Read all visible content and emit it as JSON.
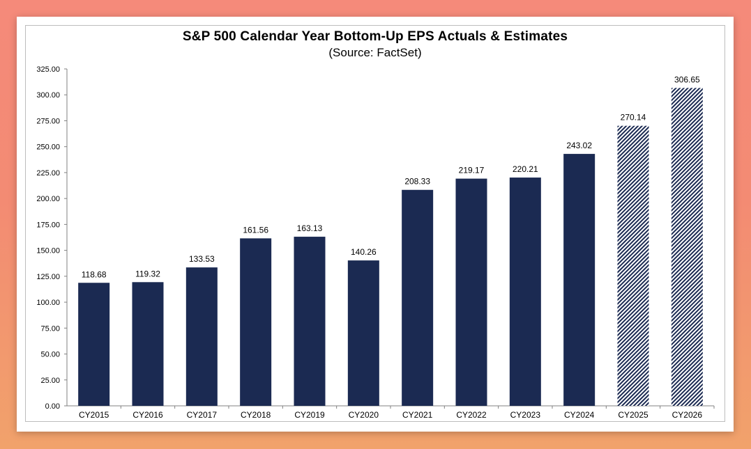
{
  "chart_data": {
    "type": "bar",
    "title": "S&P 500 Calendar Year Bottom-Up EPS Actuals & Estimates",
    "subtitle": "(Source: FactSet)",
    "xlabel": "",
    "ylabel": "",
    "categories": [
      "CY2015",
      "CY2016",
      "CY2017",
      "CY2018",
      "CY2019",
      "CY2020",
      "CY2021",
      "CY2022",
      "CY2023",
      "CY2024",
      "CY2025",
      "CY2026"
    ],
    "values": [
      118.68,
      119.32,
      133.53,
      161.56,
      163.13,
      140.26,
      208.33,
      219.17,
      220.21,
      243.02,
      270.14,
      306.65
    ],
    "value_labels": [
      "118.68",
      "119.32",
      "133.53",
      "161.56",
      "163.13",
      "140.26",
      "208.33",
      "219.17",
      "220.21",
      "243.02",
      "270.14",
      "306.65"
    ],
    "bar_kind": [
      "actual",
      "actual",
      "actual",
      "actual",
      "actual",
      "actual",
      "actual",
      "actual",
      "actual",
      "actual",
      "estimate",
      "estimate"
    ],
    "ylim": [
      0,
      325
    ],
    "yticks": [
      0,
      25,
      50,
      75,
      100,
      125,
      150,
      175,
      200,
      225,
      250,
      275,
      300,
      325
    ],
    "ytick_labels": [
      "0.00",
      "25.00",
      "50.00",
      "75.00",
      "100.00",
      "125.00",
      "150.00",
      "175.00",
      "200.00",
      "225.00",
      "250.00",
      "275.00",
      "300.00",
      "325.00"
    ],
    "grid": false,
    "legend": "none",
    "colors": {
      "actual": "#1b2a52",
      "estimate_stripe": "#1b2a52",
      "estimate_bg": "#ffffff",
      "axis": "#808080",
      "text": "#000000"
    }
  }
}
